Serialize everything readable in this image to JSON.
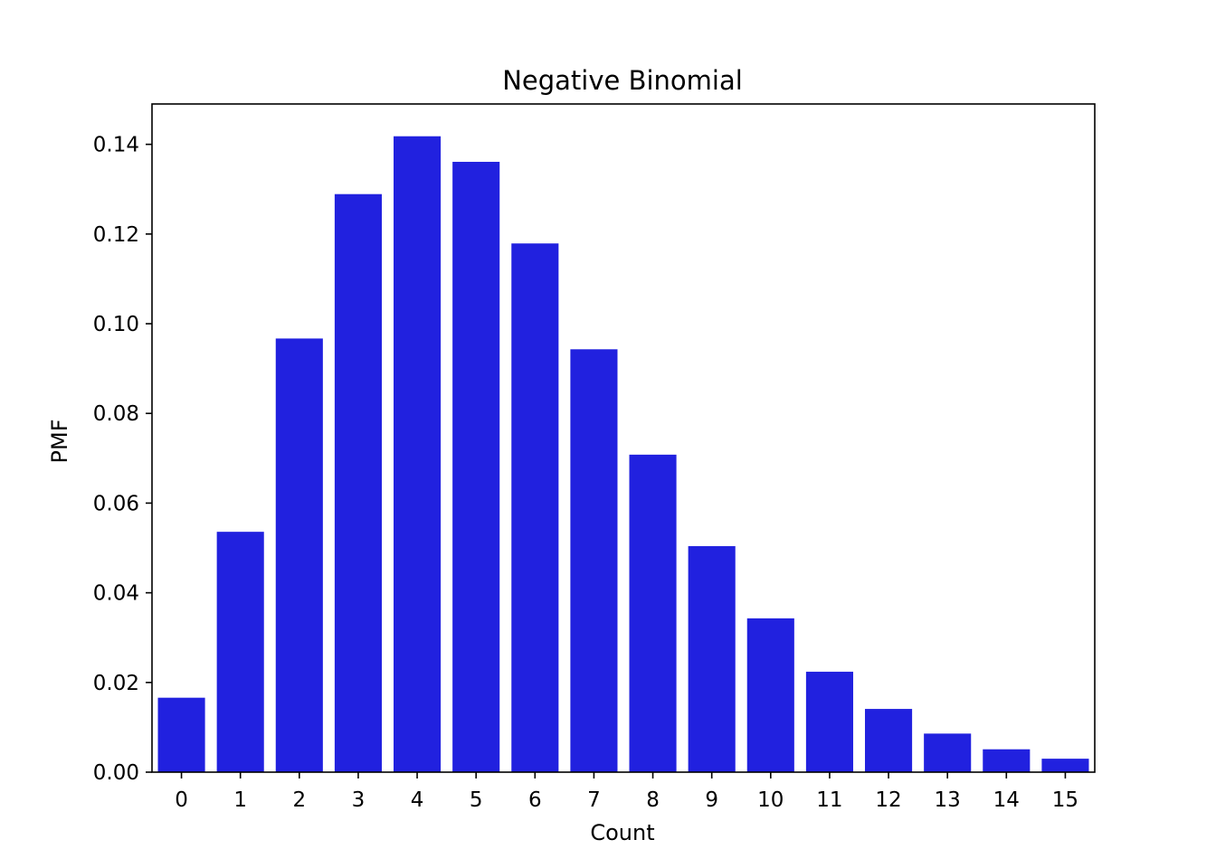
{
  "chart_data": {
    "type": "bar",
    "title": "Negative Binomial",
    "xlabel": "Count",
    "ylabel": "PMF",
    "categories": [
      "0",
      "1",
      "2",
      "3",
      "4",
      "5",
      "6",
      "7",
      "8",
      "9",
      "10",
      "11",
      "12",
      "13",
      "14",
      "15"
    ],
    "values": [
      0.0166,
      0.0536,
      0.0967,
      0.1289,
      0.1418,
      0.1361,
      0.1179,
      0.0943,
      0.0708,
      0.0504,
      0.0343,
      0.0224,
      0.0141,
      0.0086,
      0.0051,
      0.003
    ],
    "ylim": [
      0,
      0.149
    ],
    "yticks": [
      "0.00",
      "0.02",
      "0.04",
      "0.06",
      "0.08",
      "0.10",
      "0.12",
      "0.14"
    ],
    "grid": false,
    "bar_color": "#2121df"
  }
}
